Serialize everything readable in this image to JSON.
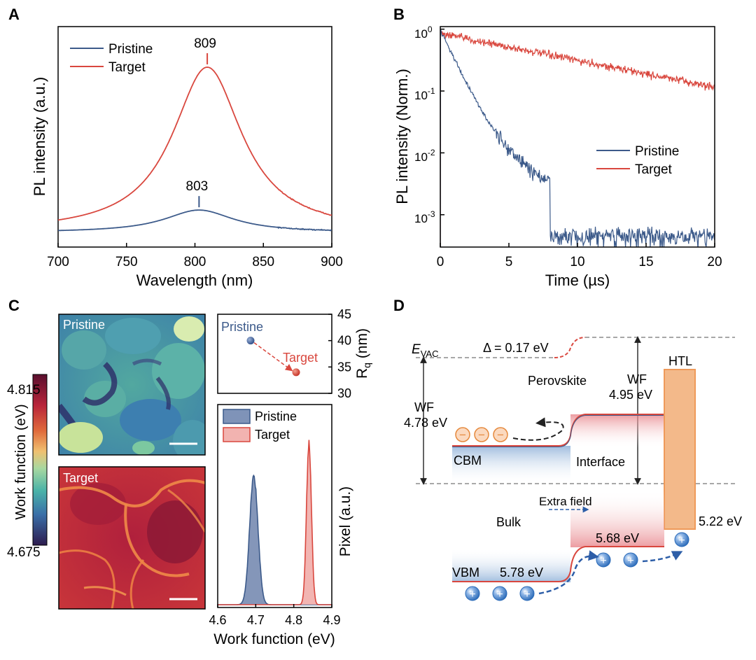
{
  "colors": {
    "pristine": "#3c5a8a",
    "target": "#d9473e",
    "htl_fill": "#f3b98a",
    "htl_stroke": "#ef9a5a",
    "grid_dash": "#8c8c8c"
  },
  "panel_labels": {
    "a": "A",
    "b": "B",
    "c": "C",
    "d": "D"
  },
  "chart_data": [
    {
      "id": "A",
      "type": "line",
      "title": "",
      "xlabel": "Wavelength (nm)",
      "ylabel": "PL intensity (a.u.)",
      "xlim": [
        700,
        900
      ],
      "ylim": [
        0,
        1.1
      ],
      "xticks": [
        "700",
        "750",
        "800",
        "850",
        "900"
      ],
      "series": [
        {
          "name": "Pristine",
          "peak_x": 803,
          "peak_y": 0.135,
          "baseline": 0.0,
          "fwhm": 62
        },
        {
          "name": "Target",
          "peak_x": 809,
          "peak_y": 1.0,
          "baseline": 0.0,
          "fwhm": 62
        }
      ],
      "annotations": [
        {
          "text": "809",
          "x": 809
        },
        {
          "text": "803",
          "x": 803
        }
      ],
      "legend": "top-left"
    },
    {
      "id": "B",
      "type": "line",
      "yscale": "log",
      "xlabel": "Time (µs)",
      "ylabel": "PL intensity (Norm.)",
      "xlim": [
        0,
        20
      ],
      "ylim": [
        0.0003,
        1.1
      ],
      "xticks": [
        "0",
        "5",
        "10",
        "15",
        "20"
      ],
      "yticks": [
        {
          "base": "10",
          "exp": "0",
          "value": 1
        },
        {
          "base": "10",
          "exp": "-1",
          "value": 0.1
        },
        {
          "base": "10",
          "exp": "-2",
          "value": 0.01
        },
        {
          "base": "10",
          "exp": "-3",
          "value": 0.001
        }
      ],
      "series": [
        {
          "name": "Pristine",
          "decay": [
            {
              "amp": 0.95,
              "tau": 0.9
            },
            {
              "amp": 0.04,
              "tau": 3.0
            }
          ],
          "floor": 0.0004
        },
        {
          "name": "Target",
          "decay": [
            {
              "amp": 0.85,
              "tau": 10.0
            }
          ],
          "floor": 0.0
        }
      ],
      "legend": "center-right"
    },
    {
      "id": "C-roughness",
      "type": "scatter",
      "ylabel_main": "R",
      "ylabel_sub": "q",
      "ylabel_unit": " (nm)",
      "ylim": [
        30,
        45
      ],
      "yticks": [
        "45",
        "40",
        "35",
        "30"
      ],
      "points": [
        {
          "name": "Pristine",
          "value": 40.0
        },
        {
          "name": "Target",
          "value": 34.0
        }
      ]
    },
    {
      "id": "C-histogram",
      "type": "area",
      "xlabel": "Work function (eV)",
      "ylabel": "Pixel (a.u.)",
      "xlim": [
        4.6,
        4.9
      ],
      "xticks": [
        "4.6",
        "4.7",
        "4.8",
        "4.9"
      ],
      "series": [
        {
          "name": "Pristine",
          "center": 4.695,
          "sigma": 0.011,
          "height": 0.72
        },
        {
          "name": "Target",
          "center": 4.84,
          "sigma": 0.0065,
          "height": 0.9
        }
      ],
      "legend": "top-right"
    }
  ],
  "panel_c": {
    "map_labels": {
      "pristine": "Pristine",
      "target": "Target"
    },
    "colorbar": {
      "label": "Work function (eV)",
      "max": "4.815",
      "min": "4.675"
    }
  },
  "panel_d": {
    "evac": {
      "main": "E",
      "sub": "VAC"
    },
    "delta": "Δ = 0.17 eV",
    "perovskite": "Perovskite",
    "wf_left_label": "WF",
    "wf_left_value": "4.78 eV",
    "wf_right_label": "WF",
    "wf_right_value": "4.95 eV",
    "htl": "HTL",
    "cbm": "CBM",
    "interface": "Interface",
    "extra_field": "Extra field",
    "bulk": "Bulk",
    "htl_value": "5.22 eV",
    "vb_interface_value": "5.68 eV",
    "vbm": "VBM",
    "vbm_value": "5.78 eV",
    "minus": "−",
    "plus": "+"
  }
}
